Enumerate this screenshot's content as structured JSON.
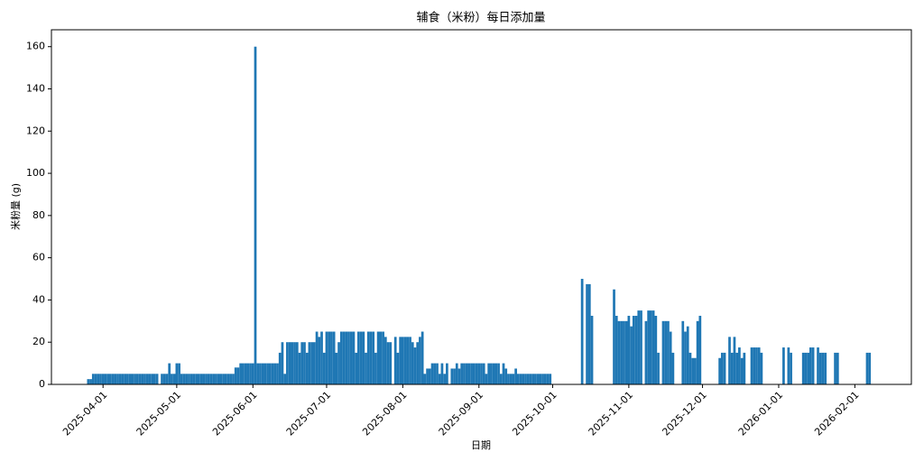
{
  "chart_data": {
    "type": "bar",
    "title": "辅食（米粉）每日添加量",
    "x_label": "日期",
    "y_label": "米粉量 (g)",
    "color": "#1f77b4",
    "xlim": [
      "2025-03-11",
      "2026-02-24"
    ],
    "ylim": [
      0,
      168
    ],
    "xticks": [
      "2025-04-01",
      "2025-05-01",
      "2025-06-01",
      "2025-07-01",
      "2025-08-01",
      "2025-09-01",
      "2025-10-01",
      "2025-11-01",
      "2025-12-01",
      "2026-01-01",
      "2026-02-01"
    ],
    "yticks": [
      0,
      20,
      40,
      60,
      80,
      100,
      120,
      140,
      160
    ],
    "x": [
      "2025-03-26",
      "2025-03-27",
      "2025-03-28",
      "2025-03-29",
      "2025-03-30",
      "2025-03-31",
      "2025-04-01",
      "2025-04-02",
      "2025-04-03",
      "2025-04-04",
      "2025-04-05",
      "2025-04-06",
      "2025-04-07",
      "2025-04-08",
      "2025-04-09",
      "2025-04-10",
      "2025-04-11",
      "2025-04-12",
      "2025-04-13",
      "2025-04-14",
      "2025-04-15",
      "2025-04-16",
      "2025-04-17",
      "2025-04-18",
      "2025-04-19",
      "2025-04-20",
      "2025-04-21",
      "2025-04-22",
      "2025-04-23",
      "2025-04-25",
      "2025-04-26",
      "2025-04-27",
      "2025-04-28",
      "2025-04-29",
      "2025-04-30",
      "2025-05-01",
      "2025-05-02",
      "2025-05-03",
      "2025-05-04",
      "2025-05-05",
      "2025-05-06",
      "2025-05-07",
      "2025-05-08",
      "2025-05-09",
      "2025-05-10",
      "2025-05-11",
      "2025-05-12",
      "2025-05-13",
      "2025-05-14",
      "2025-05-15",
      "2025-05-16",
      "2025-05-17",
      "2025-05-18",
      "2025-05-19",
      "2025-05-20",
      "2025-05-21",
      "2025-05-22",
      "2025-05-23",
      "2025-05-24",
      "2025-05-25",
      "2025-05-26",
      "2025-05-27",
      "2025-05-28",
      "2025-05-29",
      "2025-05-30",
      "2025-05-31",
      "2025-06-01",
      "2025-06-02",
      "2025-06-03",
      "2025-06-04",
      "2025-06-05",
      "2025-06-06",
      "2025-06-07",
      "2025-06-08",
      "2025-06-09",
      "2025-06-10",
      "2025-06-11",
      "2025-06-12",
      "2025-06-13",
      "2025-06-14",
      "2025-06-15",
      "2025-06-16",
      "2025-06-17",
      "2025-06-18",
      "2025-06-19",
      "2025-06-20",
      "2025-06-21",
      "2025-06-22",
      "2025-06-23",
      "2025-06-24",
      "2025-06-25",
      "2025-06-26",
      "2025-06-27",
      "2025-06-28",
      "2025-06-29",
      "2025-06-30",
      "2025-07-01",
      "2025-07-02",
      "2025-07-03",
      "2025-07-04",
      "2025-07-05",
      "2025-07-06",
      "2025-07-07",
      "2025-07-08",
      "2025-07-09",
      "2025-07-10",
      "2025-07-11",
      "2025-07-12",
      "2025-07-13",
      "2025-07-14",
      "2025-07-15",
      "2025-07-16",
      "2025-07-17",
      "2025-07-18",
      "2025-07-19",
      "2025-07-20",
      "2025-07-21",
      "2025-07-22",
      "2025-07-23",
      "2025-07-24",
      "2025-07-25",
      "2025-07-26",
      "2025-07-27",
      "2025-07-29",
      "2025-07-30",
      "2025-07-31",
      "2025-08-01",
      "2025-08-02",
      "2025-08-03",
      "2025-08-04",
      "2025-08-05",
      "2025-08-06",
      "2025-08-07",
      "2025-08-08",
      "2025-08-09",
      "2025-08-10",
      "2025-08-11",
      "2025-08-12",
      "2025-08-13",
      "2025-08-14",
      "2025-08-15",
      "2025-08-16",
      "2025-08-17",
      "2025-08-18",
      "2025-08-19",
      "2025-08-21",
      "2025-08-22",
      "2025-08-23",
      "2025-08-24",
      "2025-08-25",
      "2025-08-26",
      "2025-08-27",
      "2025-08-28",
      "2025-08-29",
      "2025-08-30",
      "2025-08-31",
      "2025-09-01",
      "2025-09-02",
      "2025-09-03",
      "2025-09-04",
      "2025-09-05",
      "2025-09-06",
      "2025-09-07",
      "2025-09-08",
      "2025-09-09",
      "2025-09-10",
      "2025-09-11",
      "2025-09-12",
      "2025-09-13",
      "2025-09-14",
      "2025-09-15",
      "2025-09-16",
      "2025-09-17",
      "2025-09-18",
      "2025-09-19",
      "2025-09-20",
      "2025-09-21",
      "2025-09-22",
      "2025-09-23",
      "2025-09-24",
      "2025-09-25",
      "2025-09-26",
      "2025-09-27",
      "2025-09-28",
      "2025-09-29",
      "2025-09-30",
      "2025-10-13",
      "2025-10-15",
      "2025-10-16",
      "2025-10-17",
      "2025-10-26",
      "2025-10-27",
      "2025-10-28",
      "2025-10-29",
      "2025-10-30",
      "2025-10-31",
      "2025-11-01",
      "2025-11-02",
      "2025-11-03",
      "2025-11-04",
      "2025-11-05",
      "2025-11-06",
      "2025-11-08",
      "2025-11-09",
      "2025-11-10",
      "2025-11-11",
      "2025-11-12",
      "2025-11-13",
      "2025-11-15",
      "2025-11-16",
      "2025-11-17",
      "2025-11-18",
      "2025-11-19",
      "2025-11-23",
      "2025-11-24",
      "2025-11-25",
      "2025-11-26",
      "2025-11-27",
      "2025-11-28",
      "2025-11-29",
      "2025-11-30",
      "2025-12-08",
      "2025-12-09",
      "2025-12-10",
      "2025-12-12",
      "2025-12-13",
      "2025-12-14",
      "2025-12-15",
      "2025-12-16",
      "2025-12-17",
      "2025-12-18",
      "2025-12-21",
      "2025-12-22",
      "2025-12-23",
      "2025-12-24",
      "2025-12-25",
      "2026-01-03",
      "2026-01-05",
      "2026-01-06",
      "2026-01-11",
      "2026-01-12",
      "2026-01-13",
      "2026-01-14",
      "2026-01-15",
      "2026-01-17",
      "2026-01-18",
      "2026-01-19",
      "2026-01-20",
      "2026-01-24",
      "2026-01-25",
      "2026-02-06",
      "2026-02-07"
    ],
    "values": [
      2.5,
      2.5,
      5,
      5,
      5,
      5,
      5,
      5,
      5,
      5,
      5,
      5,
      5,
      5,
      5,
      5,
      5,
      5,
      5,
      5,
      5,
      5,
      5,
      5,
      5,
      5,
      5,
      5,
      5,
      5,
      5,
      5,
      10,
      5,
      5,
      10,
      10,
      5,
      5,
      5,
      5,
      5,
      5,
      5,
      5,
      5,
      5,
      5,
      5,
      5,
      5,
      5,
      5,
      5,
      5,
      5,
      5,
      5,
      5,
      8,
      8,
      10,
      10,
      10,
      10,
      10,
      10,
      160,
      10,
      10,
      10,
      10,
      10,
      10,
      10,
      10,
      10,
      15,
      20,
      5,
      20,
      20,
      20,
      20,
      20,
      15,
      20,
      20,
      15,
      20,
      20,
      20,
      25,
      22.5,
      25,
      15,
      25,
      25,
      25,
      25,
      15,
      20,
      25,
      25,
      25,
      25,
      25,
      25,
      15,
      25,
      25,
      25,
      15,
      25,
      25,
      25,
      15,
      25,
      25,
      25,
      22.5,
      20,
      20,
      22.5,
      15,
      22.5,
      22.5,
      22.5,
      22.5,
      22.5,
      20,
      17.5,
      20,
      22.5,
      25,
      5,
      7.5,
      7.5,
      10,
      10,
      10,
      5,
      10,
      5,
      10,
      7.5,
      7.5,
      10,
      7.5,
      10,
      10,
      10,
      10,
      10,
      10,
      10,
      10,
      10,
      10,
      5,
      10,
      10,
      10,
      10,
      10,
      5,
      10,
      7.5,
      5,
      5,
      5,
      7.5,
      5,
      5,
      5,
      5,
      5,
      5,
      5,
      5,
      5,
      5,
      5,
      5,
      5,
      5,
      50,
      47.5,
      47.5,
      32.5,
      45,
      32.5,
      30,
      30,
      30,
      30,
      32.5,
      27.5,
      32.5,
      32.5,
      35,
      35,
      30,
      35,
      35,
      35,
      32.5,
      15,
      30,
      30,
      30,
      25,
      15,
      30,
      25,
      27.5,
      15,
      12.5,
      12.5,
      30,
      32.5,
      12.5,
      15,
      15,
      22.5,
      15,
      22.5,
      15,
      17.5,
      12.5,
      15,
      17.5,
      17.5,
      17.5,
      17.5,
      15,
      17.5,
      17.5,
      15,
      15,
      15,
      15,
      17.5,
      17.5,
      17.5,
      15,
      15,
      15,
      15,
      15,
      15,
      15
    ]
  }
}
